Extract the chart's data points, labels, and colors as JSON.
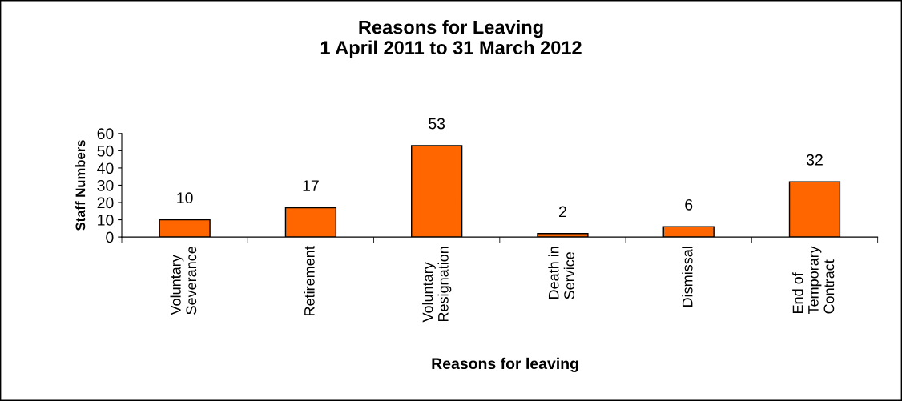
{
  "chart_data": {
    "type": "bar",
    "title": "Reasons for Leaving\n1 April 2011 to 31 March 2012",
    "xlabel": "Reasons for leaving",
    "ylabel": "Staff Numbers",
    "categories": [
      "Voluntary\nSeverance",
      "Retirement",
      "Voluntary\nResignation",
      "Death in\nService",
      "Dismissal",
      "End of\nTemporary\nContract"
    ],
    "values": [
      10,
      17,
      53,
      2,
      6,
      32
    ],
    "color": "#ff6600",
    "ylim": [
      0,
      60
    ],
    "yticks": [
      0,
      10,
      20,
      30,
      40,
      50,
      60
    ],
    "grid": false,
    "legend": false,
    "data_labels": true
  }
}
